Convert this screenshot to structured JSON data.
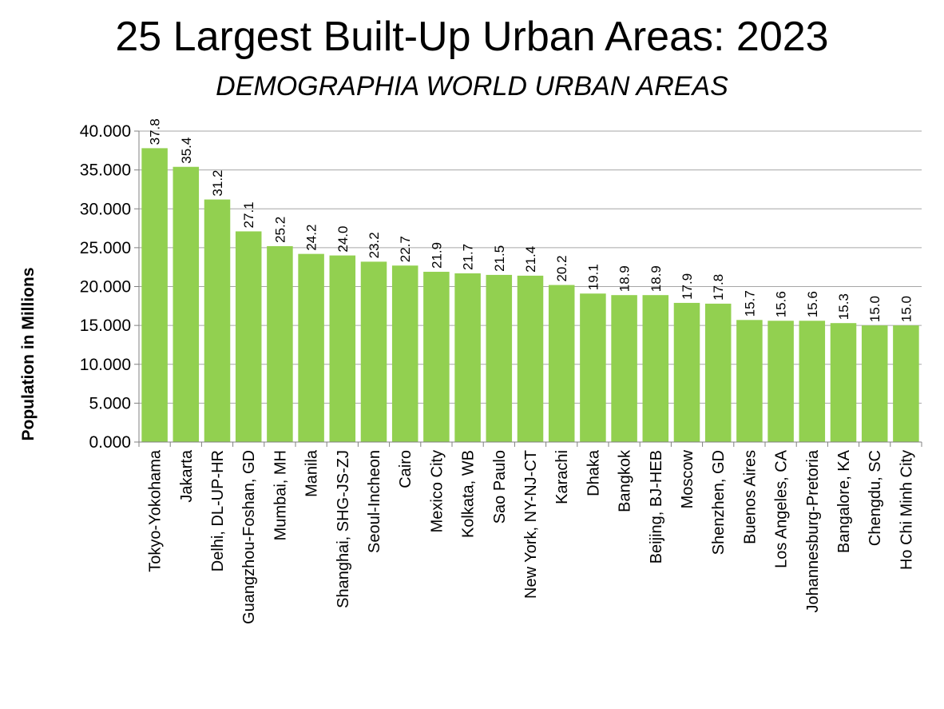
{
  "chart_data": {
    "type": "bar",
    "title": "25 Largest Built-Up Urban Areas: 2023",
    "subtitle": "DEMOGRAPHIA WORLD URBAN AREAS",
    "xlabel": "",
    "ylabel": "Population in Millions",
    "ylim": [
      0,
      40
    ],
    "yticks": [
      "0.000",
      "5.000",
      "10.000",
      "15.000",
      "20.000",
      "25.000",
      "30.000",
      "35.000",
      "40.000"
    ],
    "grid": true,
    "bar_color": "#92d050",
    "categories": [
      "Tokyo-Yokohama",
      "Jakarta",
      "Delhi, DL-UP-HR",
      "Guangzhou-Foshan, GD",
      "Mumbai, MH",
      "Manila",
      "Shanghai, SHG-JS-ZJ",
      "Seoul-Incheon",
      "Cairo",
      "Mexico City",
      "Kolkata, WB",
      "Sao Paulo",
      "New York, NY-NJ-CT",
      "Karachi",
      "Dhaka",
      "Bangkok",
      "Beijing, BJ-HEB",
      "Moscow",
      "Shenzhen, GD",
      "Buenos Aires",
      "Los Angeles, CA",
      "Johannesburg-Pretoria",
      "Bangalore, KA",
      "Chengdu, SC",
      "Ho Chi Minh City"
    ],
    "values": [
      37.8,
      35.4,
      31.2,
      27.1,
      25.2,
      24.2,
      24.0,
      23.2,
      22.7,
      21.9,
      21.7,
      21.5,
      21.4,
      20.2,
      19.1,
      18.9,
      18.9,
      17.9,
      17.8,
      15.7,
      15.6,
      15.6,
      15.3,
      15.0,
      15.0
    ],
    "data_labels": [
      "37.8",
      "35.4",
      "31.2",
      "27.1",
      "25.2",
      "24.2",
      "24.0",
      "23.2",
      "22.7",
      "21.9",
      "21.7",
      "21.5",
      "21.4",
      "20.2",
      "19.1",
      "18.9",
      "18.9",
      "17.9",
      "17.8",
      "15.7",
      "15.6",
      "15.6",
      "15.3",
      "15.0",
      "15.0"
    ]
  }
}
